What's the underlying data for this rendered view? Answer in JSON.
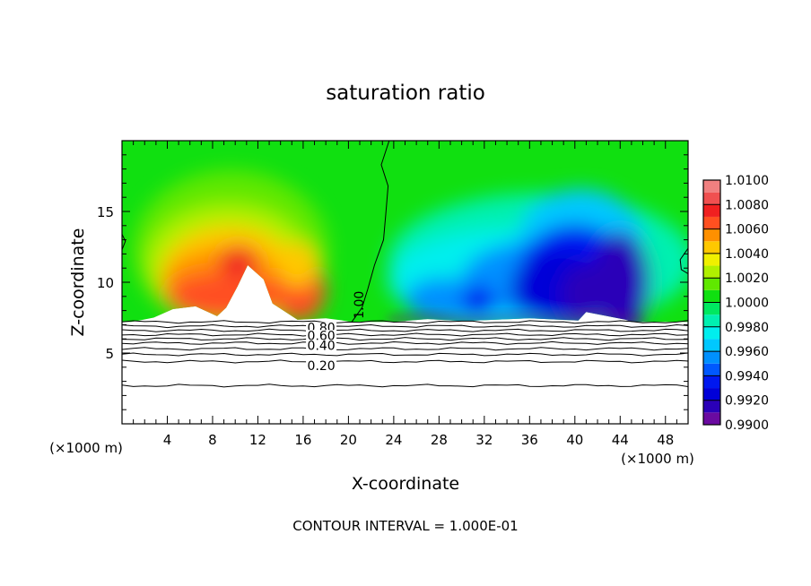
{
  "chart_data": {
    "type": "heatmap",
    "title": "saturation ratio",
    "xlabel": "X-coordinate",
    "ylabel": "Z-coordinate",
    "x_unit_left": "(×1000 m)",
    "x_unit_right": "(×1000 m)",
    "footer": "CONTOUR INTERVAL = 1.000E-01",
    "xlim": [
      0,
      50
    ],
    "ylim": [
      0,
      20
    ],
    "xticks": [
      4,
      8,
      12,
      16,
      20,
      24,
      28,
      32,
      36,
      40,
      44,
      48
    ],
    "xtick_labels": [
      "4",
      "8",
      "12",
      "16",
      "20",
      "24",
      "28",
      "32",
      "36",
      "40",
      "44",
      "48"
    ],
    "yticks": [
      5,
      10,
      15
    ],
    "ytick_labels": [
      "5",
      "10",
      "15"
    ],
    "colorbar": {
      "min": 0.99,
      "max": 1.01,
      "levels": [
        0.99,
        0.991,
        0.992,
        0.993,
        0.994,
        0.995,
        0.996,
        0.997,
        0.998,
        0.999,
        1.0,
        1.001,
        1.002,
        1.003,
        1.004,
        1.005,
        1.006,
        1.007,
        1.008,
        1.009,
        1.01
      ],
      "colors": [
        "#6a0aa0",
        "#2a00b8",
        "#0000d8",
        "#0018f0",
        "#0058ff",
        "#0090ff",
        "#00c8ff",
        "#00eeee",
        "#00f0b0",
        "#00e860",
        "#10e010",
        "#60e800",
        "#b0f000",
        "#f0f000",
        "#ffc800",
        "#ff9000",
        "#ff5020",
        "#f02020",
        "#f05050",
        "#f08080"
      ],
      "tick_values": [
        0.99,
        0.992,
        0.994,
        0.996,
        0.998,
        1.0,
        1.002,
        1.004,
        1.006,
        1.008,
        1.01
      ],
      "tick_labels": [
        "0.9900",
        "0.9920",
        "0.9940",
        "0.9960",
        "0.9980",
        "1.0000",
        "1.0020",
        "1.0040",
        "1.0060",
        "1.0080",
        "1.0100"
      ]
    },
    "contour_labels": [
      {
        "text": "1.00",
        "x": 21.3,
        "z": 8.4
      },
      {
        "text": "0.80",
        "x": 17.6,
        "z": 6.8
      },
      {
        "text": "0.60",
        "x": 17.6,
        "z": 6.25
      },
      {
        "text": "0.40",
        "x": 17.6,
        "z": 5.55
      },
      {
        "text": "0.20",
        "x": 17.6,
        "z": 4.1
      }
    ],
    "unsaturated_contour_z": [
      7.2,
      6.9,
      6.6,
      6.3,
      6.0,
      5.7,
      5.3,
      4.9,
      4.4,
      2.7
    ],
    "saturated_base_z": 7.2
  }
}
